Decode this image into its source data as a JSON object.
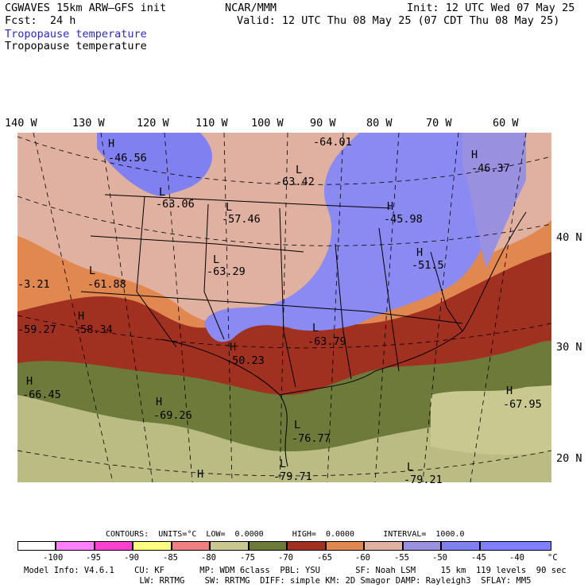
{
  "header": {
    "model": "CGWAVES 15km ARW–GFS init",
    "org": "NCAR/MMM",
    "init": "Init: 12 UTC Wed 07 May 25",
    "fcst": "Fcst:  24 h",
    "valid": "Valid: 12 UTC Thu 08 May 25 (07 CDT Thu 08 May 25)",
    "field_title_1": "Tropopause temperature",
    "field_title_2": "Tropopause temperature"
  },
  "map": {
    "longitude_labels": [
      "140 W",
      "130 W",
      "120 W",
      "110 W",
      "100 W",
      "90 W",
      "80 W",
      "70 W",
      "60 W"
    ],
    "latitude_labels": [
      "40 N",
      "30 N",
      "20 N"
    ],
    "extremes": [
      {
        "letter": "H",
        "value": "-46.56"
      },
      {
        "letter": "",
        "value": "-64.01"
      },
      {
        "letter": "L",
        "value": "-63.42"
      },
      {
        "letter": "H",
        "value": "-46.37"
      },
      {
        "letter": "L",
        "value": "-63.06"
      },
      {
        "letter": "L",
        "value": "-57.46"
      },
      {
        "letter": "H",
        "value": "-45.98"
      },
      {
        "letter": "L",
        "value": "-63.29"
      },
      {
        "letter": "H",
        "value": "-51.5"
      },
      {
        "letter": "L",
        "value": "-61.88"
      },
      {
        "letter": "",
        "value": "-3.21"
      },
      {
        "letter": "H",
        "value": "-58.34"
      },
      {
        "letter": "",
        "value": "-59.27"
      },
      {
        "letter": "L",
        "value": "-63.79"
      },
      {
        "letter": "H",
        "value": "-50.23"
      },
      {
        "letter": "H",
        "value": "-66.45"
      },
      {
        "letter": "H",
        "value": "-69.26"
      },
      {
        "letter": "H",
        "value": "-67.95"
      },
      {
        "letter": "L",
        "value": "-76.77"
      },
      {
        "letter": "L",
        "value": "-79.71"
      },
      {
        "letter": "H",
        "value": ""
      },
      {
        "letter": "L",
        "value": "-79.21"
      }
    ]
  },
  "contours_line": "CONTOURS:  UNITS=°C  LOW=  0.0000      HIGH=  0.0000      INTERVAL=  1000.0",
  "legend": {
    "colors": [
      "#ffffff",
      "#ff80ff",
      "#ff40d0",
      "#ffff80",
      "#f08080",
      "#c8c890",
      "#6e7a3a",
      "#a03020",
      "#e08850",
      "#e0b0a0",
      "#9a90e0",
      "#8080f0",
      "#8080ff"
    ],
    "ticks": [
      "-100",
      "-95",
      "-90",
      "-85",
      "-80",
      "-75",
      "-70",
      "-65",
      "-60",
      "-55",
      "-50",
      "-45",
      "-40",
      "°C"
    ]
  },
  "model_info": {
    "line1": "Model Info: V4.6.1    CU: KF       MP: WDM 6class  PBL: YSU       SF: Noah LSM     15 km  119 levels  90 sec",
    "line2": "                       LW: RRTMG    SW: RRTMG  DIFF: simple KM: 2D Smagor DAMP: Rayleigh3  SFLAY: MM5"
  }
}
